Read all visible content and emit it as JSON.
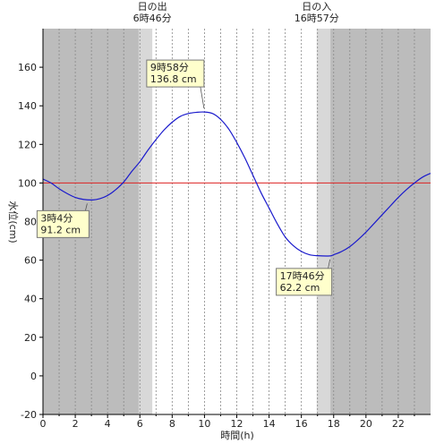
{
  "chart_data": {
    "type": "line",
    "title": "",
    "xlabel": "時間(h)",
    "ylabel": "水位(cm)",
    "xlim": [
      0,
      24
    ],
    "ylim": [
      -20,
      180
    ],
    "x_ticks": [
      0,
      2,
      4,
      6,
      8,
      10,
      12,
      14,
      16,
      18,
      20,
      22
    ],
    "y_ticks": [
      -20,
      0,
      20,
      40,
      60,
      80,
      100,
      120,
      140,
      160
    ],
    "grid": "vertical dotted at each hour",
    "reference_line": {
      "value": 100,
      "color": "#dd2222"
    },
    "series": [
      {
        "color": "#1a1acc",
        "x": [
          0,
          0.5,
          1,
          1.5,
          2,
          2.5,
          3.07,
          3.5,
          4,
          4.5,
          5,
          5.5,
          6,
          6.5,
          7,
          7.5,
          8,
          8.5,
          9,
          9.5,
          9.97,
          10.5,
          11,
          11.5,
          12,
          12.5,
          13,
          13.5,
          14,
          14.5,
          15,
          15.5,
          16,
          16.5,
          17,
          17.77,
          18,
          18.5,
          19,
          19.5,
          20,
          20.5,
          21,
          21.5,
          22,
          22.5,
          23,
          23.5,
          24
        ],
        "values": [
          102,
          100,
          97,
          94.5,
          92.5,
          91.5,
          91.2,
          91.8,
          93.5,
          96.5,
          100.5,
          106,
          111,
          117,
          122.5,
          127.5,
          131.5,
          134.5,
          136,
          136.6,
          136.8,
          136,
          133,
          128,
          121,
          113,
          104,
          95,
          87,
          79,
          72,
          67.5,
          64.5,
          62.8,
          62.3,
          62.2,
          62.8,
          64.5,
          67,
          70.5,
          74.5,
          79,
          83.5,
          88,
          92.5,
          96.5,
          100,
          103,
          105
        ]
      }
    ],
    "daylight": {
      "sunrise_hour": 6.77,
      "sunset_hour": 16.95,
      "twilight_band_hours": 0.85
    },
    "annotations": [
      {
        "id": "sunrise",
        "line1": "日の出",
        "line2": "6時46分",
        "x": 6.77
      },
      {
        "id": "sunset",
        "line1": "日の入",
        "line2": "16時57分",
        "x": 16.95
      },
      {
        "id": "high",
        "line1": "9時58分",
        "line2": "136.8 cm",
        "x": 9.97,
        "y": 136.8
      },
      {
        "id": "low1",
        "line1": "3時4分",
        "line2": "91.2 cm",
        "x": 3.07,
        "y": 91.2
      },
      {
        "id": "low2",
        "line1": "17時46分",
        "line2": "62.2 cm",
        "x": 17.77,
        "y": 62.2
      }
    ]
  }
}
